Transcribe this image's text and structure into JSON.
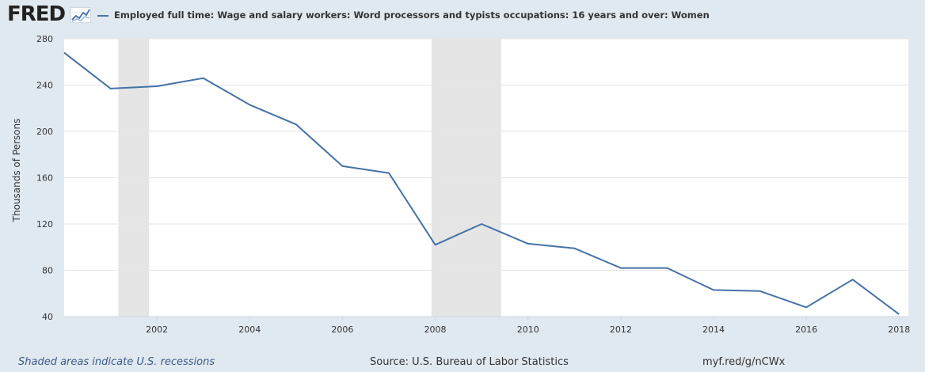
{
  "header": {
    "logo": "FRED",
    "logo_icon": "line-graph-icon"
  },
  "legend": {
    "label": "Employed full time: Wage and salary workers: Word processors and typists occupations: 16 years and over: Women"
  },
  "footer": {
    "recession_note": "Shaded areas indicate U.S. recessions",
    "source": "Source: U.S. Bureau of Labor Statistics",
    "url": "myf.red/g/nCWx"
  },
  "colors": {
    "background": "#e1e9f0",
    "plot_background": "#ffffff",
    "line": "#4572a7",
    "recession": "#e5e5e5",
    "grid": "#e6e6e6"
  },
  "chart_data": {
    "type": "line",
    "title": "",
    "xlabel": "",
    "ylabel": "Thousands of Persons",
    "xlim": [
      2000,
      2018.2
    ],
    "ylim": [
      40,
      280
    ],
    "yticks": [
      40,
      80,
      120,
      160,
      200,
      240,
      280
    ],
    "xticks": [
      2002,
      2004,
      2006,
      2008,
      2010,
      2012,
      2014,
      2016,
      2018
    ],
    "grid": true,
    "legend_position": "top-left",
    "recessions": [
      [
        2001.17,
        2001.83
      ],
      [
        2007.92,
        2009.42
      ]
    ],
    "series": [
      {
        "name": "Employed full time: Wage and salary workers: Word processors and typists occupations: 16 years and over: Women",
        "x": [
          2000,
          2001,
          2002,
          2003,
          2004,
          2005,
          2006,
          2007,
          2008,
          2009,
          2010,
          2011,
          2012,
          2013,
          2014,
          2015,
          2016,
          2017,
          2018
        ],
        "values": [
          268,
          237,
          239,
          246,
          223,
          206,
          170,
          164,
          102,
          120,
          103,
          99,
          82,
          82,
          63,
          62,
          48,
          72,
          42
        ]
      }
    ]
  }
}
